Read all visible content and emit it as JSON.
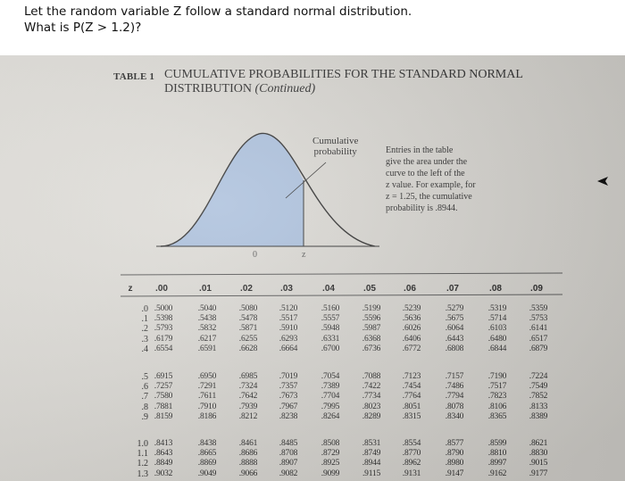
{
  "question": {
    "line1": "Let the random variable Z follow a standard normal distribution.",
    "line2": "What is P(Z > 1.2)?"
  },
  "table": {
    "label": "TABLE 1",
    "title_line1": "CUMULATIVE PROBABILITIES FOR THE STANDARD NORMAL",
    "title_line2_main": "DISTRIBUTION",
    "title_line2_italic": "(Continued)",
    "figure": {
      "cumulative_label_1": "Cumulative",
      "cumulative_label_2": "probability",
      "axis_zero": "0",
      "axis_z": "z",
      "entries_lines": [
        "Entries in the table",
        "give the area under the",
        "curve to the left of the",
        "z value. For example, for",
        "z = 1.25, the cumulative",
        "probability is .8944."
      ]
    },
    "z_header": "z",
    "column_headers": [
      ".00",
      ".01",
      ".02",
      ".03",
      ".04",
      ".05",
      ".06",
      ".07",
      ".08",
      ".09"
    ],
    "groups": [
      {
        "rows": [
          {
            "z": ".0",
            "values": [
              ".5000",
              ".5040",
              ".5080",
              ".5120",
              ".5160",
              ".5199",
              ".5239",
              ".5279",
              ".5319",
              ".5359"
            ]
          },
          {
            "z": ".1",
            "values": [
              ".5398",
              ".5438",
              ".5478",
              ".5517",
              ".5557",
              ".5596",
              ".5636",
              ".5675",
              ".5714",
              ".5753"
            ]
          },
          {
            "z": ".2",
            "values": [
              ".5793",
              ".5832",
              ".5871",
              ".5910",
              ".5948",
              ".5987",
              ".6026",
              ".6064",
              ".6103",
              ".6141"
            ]
          },
          {
            "z": ".3",
            "values": [
              ".6179",
              ".6217",
              ".6255",
              ".6293",
              ".6331",
              ".6368",
              ".6406",
              ".6443",
              ".6480",
              ".6517"
            ]
          },
          {
            "z": ".4",
            "values": [
              ".6554",
              ".6591",
              ".6628",
              ".6664",
              ".6700",
              ".6736",
              ".6772",
              ".6808",
              ".6844",
              ".6879"
            ]
          }
        ]
      },
      {
        "rows": [
          {
            "z": ".5",
            "values": [
              ".6915",
              ".6950",
              ".6985",
              ".7019",
              ".7054",
              ".7088",
              ".7123",
              ".7157",
              ".7190",
              ".7224"
            ]
          },
          {
            "z": ".6",
            "values": [
              ".7257",
              ".7291",
              ".7324",
              ".7357",
              ".7389",
              ".7422",
              ".7454",
              ".7486",
              ".7517",
              ".7549"
            ]
          },
          {
            "z": ".7",
            "values": [
              ".7580",
              ".7611",
              ".7642",
              ".7673",
              ".7704",
              ".7734",
              ".7764",
              ".7794",
              ".7823",
              ".7852"
            ]
          },
          {
            "z": ".8",
            "values": [
              ".7881",
              ".7910",
              ".7939",
              ".7967",
              ".7995",
              ".8023",
              ".8051",
              ".8078",
              ".8106",
              ".8133"
            ]
          },
          {
            "z": ".9",
            "values": [
              ".8159",
              ".8186",
              ".8212",
              ".8238",
              ".8264",
              ".8289",
              ".8315",
              ".8340",
              ".8365",
              ".8389"
            ]
          }
        ]
      },
      {
        "rows": [
          {
            "z": "1.0",
            "values": [
              ".8413",
              ".8438",
              ".8461",
              ".8485",
              ".8508",
              ".8531",
              ".8554",
              ".8577",
              ".8599",
              ".8621"
            ]
          },
          {
            "z": "1.1",
            "values": [
              ".8643",
              ".8665",
              ".8686",
              ".8708",
              ".8729",
              ".8749",
              ".8770",
              ".8790",
              ".8810",
              ".8830"
            ]
          },
          {
            "z": "1.2",
            "values": [
              ".8849",
              ".8869",
              ".8888",
              ".8907",
              ".8925",
              ".8944",
              ".8962",
              ".8980",
              ".8997",
              ".9015"
            ]
          },
          {
            "z": "1.3",
            "values": [
              ".9032",
              ".9049",
              ".9066",
              ".9082",
              ".9099",
              ".9115",
              ".9131",
              ".9147",
              ".9162",
              ".9177"
            ]
          }
        ]
      }
    ]
  },
  "colors": {
    "curve_fill": "#a9bedb",
    "text": "#2a2a2a"
  }
}
